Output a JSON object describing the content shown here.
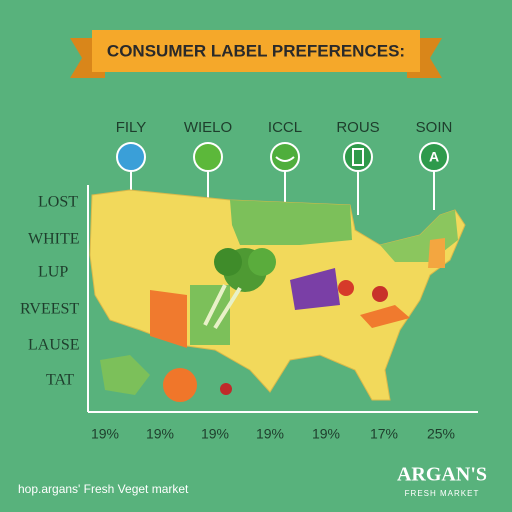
{
  "header": {
    "title": "CONSUMER LABEL PREFERENCES:"
  },
  "icons": [
    {
      "label": "FILY"
    },
    {
      "label": "WIELO"
    },
    {
      "label": "ICCL"
    },
    {
      "label": "ROUS"
    },
    {
      "label": "SOIN",
      "symbol": "A"
    }
  ],
  "row_labels": [
    "LOST",
    "WHITE",
    "LUP",
    "RVEEST",
    "LAUSE",
    "TAT"
  ],
  "column_values": [
    "19%",
    "19%",
    "19%",
    "19%",
    "19%",
    "17%",
    "25%"
  ],
  "footer": {
    "url": "hop.argans' Fresh Veget market",
    "brand": "ARGAN'S",
    "tagline": "FRESH MARKET"
  }
}
